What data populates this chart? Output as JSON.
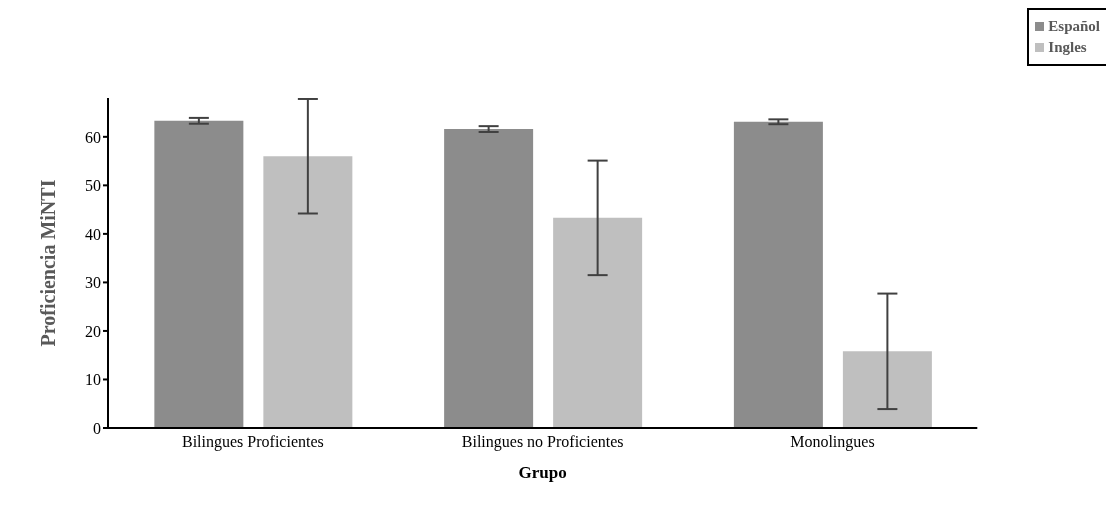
{
  "chart_data": {
    "type": "bar",
    "xlabel": "Grupo",
    "ylabel": "Proficiencia MiNTI",
    "categories": [
      "Bilingues Proficientes",
      "Bilingues no Proficientes",
      "Monolingues"
    ],
    "series": [
      {
        "name": "Español",
        "color": "#8c8c8c",
        "values": [
          63.3,
          61.6,
          63.1
        ],
        "errors": [
          0.6,
          0.6,
          0.5
        ]
      },
      {
        "name": "Ingles",
        "color": "#bfbfbf",
        "values": [
          56,
          43.3,
          15.8
        ],
        "errors": [
          11.8,
          11.8,
          11.9
        ]
      }
    ],
    "ylim": [
      0,
      68
    ],
    "yticks": [
      0,
      10,
      20,
      30,
      40,
      50,
      60
    ],
    "grid": false,
    "legend": "top right"
  }
}
